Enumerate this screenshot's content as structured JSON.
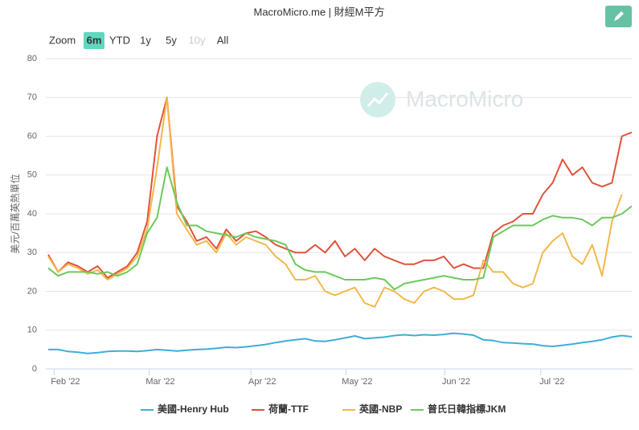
{
  "title": "MacroMicro.me | 財經M平方",
  "range_selector": {
    "label": "Zoom",
    "buttons": [
      "6m",
      "YTD",
      "1y",
      "5y",
      "10y",
      "All"
    ],
    "selected": 0,
    "disabled": [
      4
    ]
  },
  "watermark": "MacroMicro",
  "chart_data": {
    "type": "line",
    "y_axis_label": "美元/百萬英熱單位",
    "ylim": [
      0,
      80
    ],
    "yticks": [
      0,
      10,
      20,
      30,
      40,
      50,
      60,
      70,
      80
    ],
    "grid": true,
    "xlim": [
      0,
      59
    ],
    "xticks": [
      {
        "value": 0.6,
        "label": "Feb '22"
      },
      {
        "value": 10.2,
        "label": "Mar '22"
      },
      {
        "value": 20.5,
        "label": "Apr '22"
      },
      {
        "value": 30.1,
        "label": "May '22"
      },
      {
        "value": 40.1,
        "label": "Jun '22"
      },
      {
        "value": 49.8,
        "label": "Jul '22"
      }
    ],
    "categories": [
      null,
      null,
      null,
      null,
      null,
      null,
      null,
      null,
      null,
      null,
      null,
      null,
      null,
      null,
      null,
      null,
      null,
      null,
      null,
      null,
      null,
      null,
      null,
      null,
      null,
      null,
      null,
      null,
      null,
      null,
      null,
      null,
      null,
      null,
      null,
      null,
      null,
      null,
      null,
      null,
      null,
      null,
      null,
      null,
      null,
      null,
      null,
      null,
      null,
      null,
      null,
      null,
      null,
      null,
      null,
      null,
      null,
      null,
      null,
      null
    ],
    "legend": "bottom",
    "series": [
      {
        "name": "美國-Henry Hub",
        "color": "#3eaed6",
        "values": [
          5,
          5,
          4.5,
          4.3,
          4,
          4.2,
          4.5,
          4.6,
          4.6,
          4.5,
          4.7,
          5,
          4.8,
          4.6,
          4.8,
          5,
          5.1,
          5.3,
          5.6,
          5.5,
          5.7,
          6,
          6.3,
          6.8,
          7.2,
          7.5,
          7.8,
          7.2,
          7.1,
          7.5,
          8,
          8.5,
          7.8,
          8,
          8.2,
          8.6,
          8.8,
          8.6,
          8.8,
          8.7,
          8.9,
          9.2,
          9,
          8.7,
          7.5,
          7.3,
          6.8,
          6.7,
          6.5,
          6.4,
          6,
          5.8,
          6.1,
          6.4,
          6.8,
          7.1,
          7.5,
          8.2,
          8.6,
          8.3
        ]
      },
      {
        "name": "荷蘭-TTF",
        "color": "#e0533c",
        "values": [
          29.5,
          25,
          27.5,
          26.5,
          25,
          26.5,
          23.5,
          25,
          26.5,
          30,
          38,
          60,
          70,
          42,
          38,
          33,
          34,
          31,
          36,
          33,
          35,
          35.5,
          34,
          32,
          31,
          30,
          30,
          32,
          30,
          33,
          29,
          31,
          28,
          31,
          29,
          28,
          27,
          27,
          28,
          28,
          29,
          26,
          27,
          26,
          26,
          35,
          37,
          38,
          40,
          40,
          45,
          48,
          54,
          50,
          52,
          48,
          47,
          48,
          60,
          61
        ]
      },
      {
        "name": "英國-NBP",
        "color": "#f2b84b",
        "values": [
          29,
          25,
          27,
          26,
          24.5,
          25.5,
          23,
          24.5,
          26,
          29,
          36,
          52,
          70,
          40,
          36,
          32,
          33,
          30,
          35,
          32,
          34,
          33,
          32,
          29,
          27,
          23,
          23,
          24,
          20,
          19,
          20,
          21,
          17,
          16,
          21,
          20,
          18,
          17,
          20,
          21,
          20,
          18,
          18,
          19,
          28,
          25,
          25,
          22,
          21,
          22,
          30,
          33,
          35,
          29,
          27,
          32,
          24,
          38,
          45,
          null
        ]
      },
      {
        "name": "普氏日韓指標JKM",
        "color": "#6cc95b",
        "values": [
          26,
          24,
          25,
          25,
          25,
          24.5,
          25,
          24,
          25,
          27,
          35,
          39,
          52,
          43,
          37,
          37,
          35.5,
          35,
          34.5,
          34,
          35,
          34,
          33.5,
          33,
          32,
          27,
          25.5,
          25,
          25,
          24,
          23,
          23,
          23,
          23.5,
          23,
          20.5,
          22,
          22.5,
          23,
          23.5,
          24,
          23.5,
          23,
          23,
          23.5,
          34,
          35.5,
          37,
          37,
          37,
          38.5,
          39.5,
          39,
          39,
          38.5,
          37,
          39,
          39,
          40,
          42
        ]
      }
    ]
  }
}
